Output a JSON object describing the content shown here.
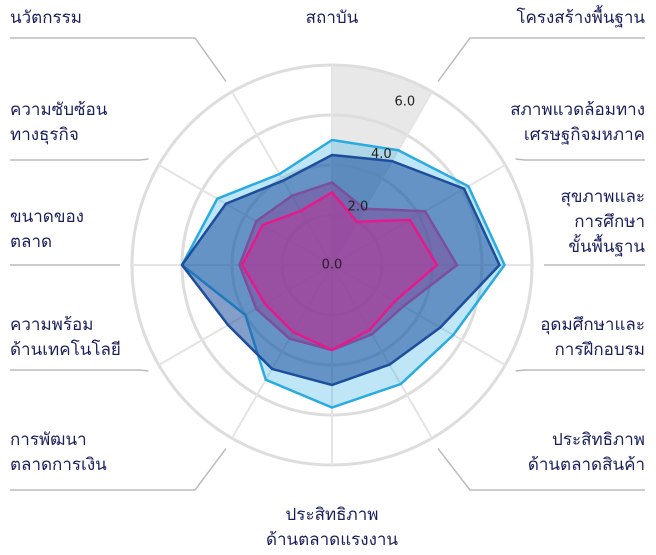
{
  "chart_data": {
    "type": "radar",
    "categories": [
      "สถาบัน",
      "โครงสร้างพื้นฐาน",
      "สภาพแวดล้อมทาง\nเศรษฐกิจมหภาค",
      "สุขภาพและ\nการศึกษา\nขั้นพื้นฐาน",
      "อุดมศึกษาและ\nการฝึกอบรม",
      "ประสิทธิภาพ\nด้านตลาดสินค้า",
      "ประสิทธิภาพ\nด้านตลาดแรงงาน",
      "การพัฒนา\nตลาดการเงิน",
      "ความพร้อม\nด้านเทคโนโลยี",
      "ขนาดของ\nตลาด",
      "ความซับซ้อน\nทางธุรกิจ",
      "นวัตกรรม"
    ],
    "series": [
      {
        "color": "#29abe2",
        "values": [
          5.0,
          5.3,
          6.3,
          6.9,
          5.6,
          5.5,
          5.7,
          5.3,
          4.0,
          6.0,
          5.3,
          4.2
        ]
      },
      {
        "color": "#1c4e9c",
        "values": [
          4.4,
          4.8,
          6.1,
          6.7,
          5.0,
          4.6,
          4.8,
          4.8,
          4.8,
          6.0,
          4.9,
          3.9
        ]
      },
      {
        "color": "#7b4f9d",
        "values": [
          3.3,
          2.6,
          4.3,
          5.0,
          3.3,
          3.2,
          3.4,
          3.4,
          3.5,
          3.7,
          3.5,
          3.2
        ]
      },
      {
        "color": "#e6198b",
        "values": [
          2.9,
          2.0,
          3.6,
          4.2,
          2.9,
          3.0,
          3.4,
          3.1,
          3.1,
          3.6,
          3.2,
          2.5
        ]
      }
    ],
    "ylim": [
      0,
      8
    ],
    "yticks": [
      {
        "value": 0,
        "label": "0.0"
      },
      {
        "value": 2,
        "label": "2.0"
      },
      {
        "value": 4,
        "label": "4.0"
      },
      {
        "value": 6,
        "label": "6.0"
      }
    ]
  }
}
